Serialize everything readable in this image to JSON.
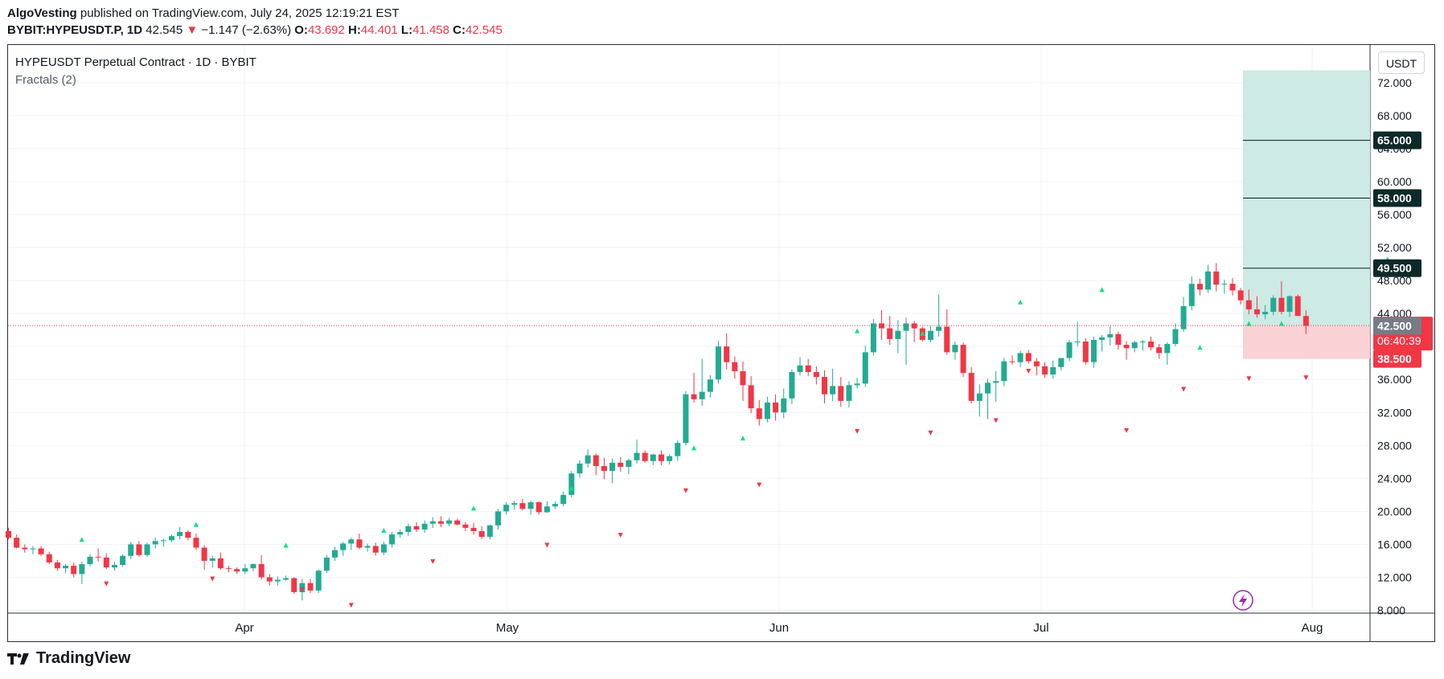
{
  "header": {
    "author": "AlgoVesting",
    "published_text": "published on TradingView.com, July 24, 2025 12:19:21 EST",
    "symbol": "BYBIT:HYPEUSDT.P, 1D",
    "last": "42.545",
    "arrow": "▼",
    "change": "−1.147 (−2.63%)",
    "o_label": "O:",
    "o_value": "43.692",
    "h_label": "H:",
    "h_value": "44.401",
    "l_label": "L:",
    "l_value": "41.458",
    "c_label": "C:",
    "c_value": "42.545"
  },
  "legend": {
    "title": "HYPEUSDT Perpetual Contract · 1D · BYBIT",
    "indicator": "Fractals (2)"
  },
  "currency_button": "USDT",
  "countdown": "06:40:39",
  "footer": {
    "brand": "TradingView"
  },
  "colors": {
    "up": "#22ab94",
    "down": "#f23645",
    "target_zone": "#cdeae4",
    "stop_zone": "#fad1d4",
    "fractal_up": "#00e676",
    "fractal_down": "#f23645"
  },
  "chart_data": {
    "type": "candlestick",
    "title": "HYPEUSDT Perpetual Contract · 1D · BYBIT",
    "x_labels": [
      "Apr",
      "May",
      "Jun",
      "Jul",
      "Aug"
    ],
    "y_ticks": [
      "8.000",
      "12.000",
      "16.000",
      "20.000",
      "24.000",
      "28.000",
      "32.000",
      "36.000",
      "40.000",
      "44.000",
      "48.000",
      "52.000",
      "56.000",
      "60.000",
      "64.000",
      "68.000",
      "72.000"
    ],
    "ylim": [
      8,
      75
    ],
    "candles": [
      [
        17.6,
        18,
        16.6,
        16.8
      ],
      [
        16.8,
        17.2,
        15.5,
        15.6
      ],
      [
        15.6,
        16,
        15,
        15.4
      ],
      [
        15.4,
        15.8,
        14.8,
        15.5
      ],
      [
        15.5,
        15.8,
        14.6,
        14.8
      ],
      [
        14.8,
        15.1,
        13.6,
        13.8
      ],
      [
        13.8,
        14.1,
        12.8,
        13.1
      ],
      [
        13.1,
        13.6,
        12.5,
        13.4
      ],
      [
        13.4,
        13.8,
        12,
        12.4
      ],
      [
        12.4,
        13.9,
        11.2,
        13.6
      ],
      [
        13.6,
        14.8,
        13.3,
        14.5
      ],
      [
        14.5,
        15.5,
        13.9,
        14.4
      ],
      [
        14.4,
        14.9,
        13,
        13.2
      ],
      [
        13.2,
        13.9,
        12.8,
        13.5
      ],
      [
        13.5,
        14.8,
        13.3,
        14.6
      ],
      [
        14.6,
        16.3,
        14.2,
        16
      ],
      [
        16,
        16.4,
        14.5,
        14.7
      ],
      [
        14.7,
        16.2,
        14.5,
        16
      ],
      [
        16,
        16.8,
        15.5,
        16.4
      ],
      [
        16.4,
        16.7,
        15.7,
        16.5
      ],
      [
        16.5,
        17.2,
        16.3,
        17
      ],
      [
        17,
        18.1,
        16.6,
        17.5
      ],
      [
        17.5,
        17.7,
        16.5,
        16.8
      ],
      [
        16.8,
        17.3,
        15.3,
        15.6
      ],
      [
        15.6,
        15.9,
        12.9,
        14
      ],
      [
        14,
        14.6,
        13.2,
        14.3
      ],
      [
        14.3,
        15,
        12.9,
        13.1
      ],
      [
        13.1,
        13.4,
        12.6,
        13
      ],
      [
        13,
        13.2,
        12.4,
        12.7
      ],
      [
        12.7,
        13.6,
        12.4,
        13.1
      ],
      [
        13.1,
        13.7,
        12.7,
        13.6
      ],
      [
        13.6,
        14.7,
        11.7,
        12
      ],
      [
        12,
        12.4,
        11,
        11.5
      ],
      [
        11.5,
        12.1,
        11,
        11.7
      ],
      [
        11.7,
        12.2,
        11.6,
        11.9
      ],
      [
        11.9,
        12,
        10,
        10.2
      ],
      [
        10.2,
        11.8,
        9.2,
        11.3
      ],
      [
        11.3,
        11.8,
        10.1,
        10.4
      ],
      [
        10.4,
        13,
        10.1,
        12.8
      ],
      [
        12.8,
        14.7,
        12.5,
        14.4
      ],
      [
        14.4,
        15.7,
        14,
        15.3
      ],
      [
        15.3,
        16.3,
        14.6,
        16.1
      ],
      [
        16.1,
        16.8,
        15.3,
        16.6
      ],
      [
        16.6,
        17.3,
        15.4,
        15.6
      ],
      [
        15.6,
        16.1,
        15.1,
        15.8
      ],
      [
        15.8,
        16.2,
        14.6,
        15
      ],
      [
        15,
        16.3,
        14.7,
        16
      ],
      [
        16,
        17.5,
        15.6,
        17.2
      ],
      [
        17.2,
        17.8,
        16.8,
        17.5
      ],
      [
        17.5,
        18.5,
        17,
        18.2
      ],
      [
        18.2,
        18.7,
        17.5,
        17.8
      ],
      [
        17.8,
        18.9,
        17.4,
        18.5
      ],
      [
        18.5,
        19.3,
        18,
        18.8
      ],
      [
        18.8,
        19.4,
        18.1,
        18.5
      ],
      [
        18.5,
        19.2,
        18.2,
        18.9
      ],
      [
        18.9,
        19.1,
        18.3,
        18.4
      ],
      [
        18.4,
        18.7,
        17.6,
        18
      ],
      [
        18,
        18.6,
        17.2,
        17.6
      ],
      [
        17.6,
        18.2,
        16.6,
        16.9
      ],
      [
        16.9,
        18.4,
        16.6,
        18.3
      ],
      [
        18.3,
        20.3,
        17.8,
        20
      ],
      [
        20,
        21.1,
        19.6,
        20.8
      ],
      [
        20.8,
        21.3,
        20.2,
        21
      ],
      [
        21,
        21.5,
        20.1,
        20.3
      ],
      [
        20.3,
        21.3,
        19.6,
        21.1
      ],
      [
        21.1,
        21.2,
        19.6,
        19.9
      ],
      [
        19.9,
        21.2,
        19.8,
        20.6
      ],
      [
        20.6,
        21.2,
        20.3,
        20.9
      ],
      [
        20.9,
        22.4,
        20.6,
        22
      ],
      [
        22,
        24.9,
        21.7,
        24.6
      ],
      [
        24.6,
        26.2,
        24.1,
        25.8
      ],
      [
        25.8,
        27.5,
        25.3,
        26.8
      ],
      [
        26.8,
        27,
        24.4,
        25.5
      ],
      [
        25.5,
        26.5,
        23.9,
        24.9
      ],
      [
        24.9,
        26.4,
        23.4,
        25.9
      ],
      [
        25.9,
        26.6,
        24.8,
        25.4
      ],
      [
        25.4,
        26.4,
        24.5,
        26.2
      ],
      [
        26.2,
        28.7,
        25.8,
        27.1
      ],
      [
        27.1,
        27.4,
        25.9,
        26.1
      ],
      [
        26.1,
        27,
        25.6,
        26.9
      ],
      [
        26.9,
        27.4,
        25.6,
        26.1
      ],
      [
        26.1,
        26.9,
        25.7,
        26.7
      ],
      [
        26.7,
        28.6,
        26.1,
        28.3
      ],
      [
        28.3,
        34.6,
        28,
        34.2
      ],
      [
        34.2,
        36.8,
        33.2,
        33.6
      ],
      [
        33.6,
        38.5,
        32.8,
        34.5
      ],
      [
        34.5,
        36.5,
        33.8,
        36
      ],
      [
        36,
        40.7,
        35.5,
        40
      ],
      [
        40,
        41.6,
        37.2,
        38.1
      ],
      [
        38.1,
        38.8,
        36.1,
        37
      ],
      [
        37,
        38.2,
        33.4,
        35.3
      ],
      [
        35.3,
        36.4,
        31.9,
        32.5
      ],
      [
        32.5,
        33.5,
        30.4,
        31.2
      ],
      [
        31.2,
        33.9,
        30.8,
        33.2
      ],
      [
        33.2,
        34.2,
        31,
        32
      ],
      [
        32,
        34.9,
        31.3,
        33.7
      ],
      [
        33.7,
        37.2,
        33,
        36.9
      ],
      [
        36.9,
        38.7,
        36.5,
        37.7
      ],
      [
        37.7,
        38.5,
        36.4,
        36.9
      ],
      [
        36.9,
        37.6,
        35.4,
        36.3
      ],
      [
        36.3,
        37.1,
        33.1,
        34.2
      ],
      [
        34.2,
        37.3,
        33.4,
        35.2
      ],
      [
        35.2,
        36.3,
        32.7,
        33.4
      ],
      [
        33.4,
        35.8,
        32.6,
        35.3
      ],
      [
        35.3,
        36.2,
        34.9,
        35.5
      ],
      [
        35.5,
        40.1,
        35.1,
        39.3
      ],
      [
        39.3,
        43.3,
        38.9,
        42.8
      ],
      [
        42.8,
        44.4,
        40.8,
        42.2
      ],
      [
        42.2,
        43.7,
        40.2,
        40.9
      ],
      [
        40.9,
        43.2,
        39.2,
        41.9
      ],
      [
        41.9,
        43.5,
        37.8,
        42.8
      ],
      [
        42.8,
        43.1,
        40.5,
        42.2
      ],
      [
        42.2,
        42.4,
        40.6,
        40.8
      ],
      [
        40.8,
        42.5,
        40.5,
        41.9
      ],
      [
        41.9,
        46.3,
        41.2,
        42.4
      ],
      [
        42.4,
        44.5,
        39,
        39.3
      ],
      [
        39.3,
        40.6,
        38.4,
        40.2
      ],
      [
        40.2,
        40.5,
        36.3,
        36.8
      ],
      [
        36.8,
        37.5,
        33.1,
        33.4
      ],
      [
        33.4,
        35.4,
        31.5,
        34.3
      ],
      [
        34.3,
        36.1,
        31.2,
        35.6
      ],
      [
        35.6,
        37,
        33.3,
        35.8
      ],
      [
        35.8,
        38.6,
        35.2,
        38.2
      ],
      [
        38.2,
        38.9,
        37.8,
        38.1
      ],
      [
        38.1,
        39.5,
        37.5,
        39.2
      ],
      [
        39.2,
        39.6,
        37.9,
        38.2
      ],
      [
        38.2,
        38.6,
        36.5,
        37.6
      ],
      [
        37.6,
        38.1,
        36.2,
        36.6
      ],
      [
        36.6,
        38.3,
        36.1,
        37.5
      ],
      [
        37.5,
        38.6,
        37.1,
        38.6
      ],
      [
        38.6,
        40.8,
        38.2,
        40.5
      ],
      [
        40.5,
        43,
        40,
        40.6
      ],
      [
        40.6,
        41,
        37.8,
        38.1
      ],
      [
        38.1,
        41.2,
        37.4,
        40.8
      ],
      [
        40.8,
        41.4,
        39.4,
        41.1
      ],
      [
        41.1,
        42.5,
        40.1,
        41.5
      ],
      [
        41.5,
        41.8,
        39.6,
        40.2
      ],
      [
        40.2,
        40.6,
        38.4,
        39.8
      ],
      [
        39.8,
        40.7,
        39.3,
        40.5
      ],
      [
        40.5,
        40.8,
        39.5,
        40.6
      ],
      [
        40.6,
        41.2,
        39.5,
        39.9
      ],
      [
        39.9,
        40.3,
        38.5,
        39.2
      ],
      [
        39.2,
        40.5,
        37.8,
        40.3
      ],
      [
        40.3,
        42.8,
        40,
        42.1
      ],
      [
        42.1,
        46,
        41.8,
        44.9
      ],
      [
        44.9,
        48.5,
        44.4,
        47.6
      ],
      [
        47.6,
        48.2,
        46.2,
        46.9
      ],
      [
        46.9,
        49.9,
        46.5,
        49.1
      ],
      [
        49.1,
        50.1,
        46.7,
        47.5
      ],
      [
        47.5,
        48.1,
        46.4,
        47.6
      ],
      [
        47.6,
        48.3,
        46.2,
        46.8
      ],
      [
        46.8,
        47.1,
        45.1,
        45.6
      ],
      [
        45.6,
        46.9,
        43.9,
        44.5
      ],
      [
        44.5,
        46.1,
        43.5,
        43.9
      ],
      [
        43.9,
        45,
        43.3,
        44.2
      ],
      [
        44.2,
        46.2,
        43.8,
        45.9
      ],
      [
        45.9,
        47.9,
        43.9,
        44.2
      ],
      [
        44.2,
        46.2,
        43.6,
        46.1
      ],
      [
        46.1,
        46.3,
        44.1,
        43.7
      ],
      [
        43.7,
        44.4,
        41.5,
        42.5
      ]
    ],
    "fractals_up": [
      [
        9,
        16.6
      ],
      [
        23,
        18.4
      ],
      [
        34,
        15.9
      ],
      [
        46,
        17.7
      ],
      [
        57,
        20.4
      ],
      [
        69,
        22.8
      ],
      [
        84,
        27.7
      ],
      [
        90,
        28.9
      ],
      [
        104,
        41.9
      ],
      [
        112,
        41.6
      ],
      [
        124,
        45.4
      ],
      [
        134,
        46.9
      ],
      [
        146,
        39.9
      ],
      [
        152,
        42.8
      ],
      [
        156,
        42.8
      ],
      [
        169,
        50.6
      ],
      [
        178,
        49.2
      ]
    ],
    "fractals_down": [
      [
        12,
        11.2
      ],
      [
        25,
        11.8
      ],
      [
        36,
        10.5
      ],
      [
        42,
        8.6
      ],
      [
        52,
        13.9
      ],
      [
        66,
        15.9
      ],
      [
        75,
        17.1
      ],
      [
        83,
        22.5
      ],
      [
        92,
        23.2
      ],
      [
        104,
        29.7
      ],
      [
        113,
        29.5
      ],
      [
        121,
        31.0
      ],
      [
        125,
        37.0
      ],
      [
        137,
        29.8
      ],
      [
        144,
        34.8
      ],
      [
        152,
        36.1
      ],
      [
        159,
        36.2
      ],
      [
        170,
        41.4
      ]
    ],
    "price_levels": {
      "target_3": "65.000",
      "target_2": "58.000",
      "target_1": "49.500",
      "current": "42.545",
      "entry": "42.500",
      "stop": "38.500"
    },
    "position": {
      "entry": 42.5,
      "stop": 38.5,
      "target": 73.5
    }
  }
}
